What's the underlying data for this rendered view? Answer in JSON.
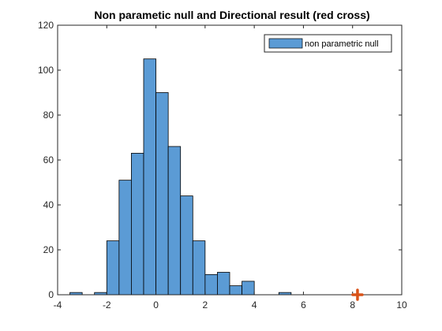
{
  "chart_data": {
    "type": "bar",
    "title": "Non parametic null and Directional result (red cross)",
    "xlabel": "",
    "ylabel": "",
    "xlim": [
      -4,
      10
    ],
    "ylim": [
      0,
      120
    ],
    "xticks": [
      "-4",
      "-2",
      "0",
      "2",
      "4",
      "6",
      "8",
      "10"
    ],
    "yticks": [
      "0",
      "20",
      "40",
      "60",
      "80",
      "100",
      "120"
    ],
    "grid": false,
    "legend": {
      "position": "top-right",
      "entries": [
        "non parametric null"
      ]
    },
    "bin_width": 0.5,
    "bins": [
      {
        "left": -3.5,
        "count": 1
      },
      {
        "left": -2.5,
        "count": 1
      },
      {
        "left": -2.0,
        "count": 24
      },
      {
        "left": -1.5,
        "count": 51
      },
      {
        "left": -1.0,
        "count": 63
      },
      {
        "left": -0.5,
        "count": 105
      },
      {
        "left": 0.0,
        "count": 90
      },
      {
        "left": 0.5,
        "count": 66
      },
      {
        "left": 1.0,
        "count": 44
      },
      {
        "left": 1.5,
        "count": 24
      },
      {
        "left": 2.0,
        "count": 9
      },
      {
        "left": 2.5,
        "count": 10
      },
      {
        "left": 3.0,
        "count": 4
      },
      {
        "left": 3.5,
        "count": 6
      },
      {
        "left": 5.0,
        "count": 1
      }
    ],
    "series": [
      {
        "name": "non parametric null",
        "kind": "histogram",
        "color": "#5b9bd5"
      }
    ],
    "marker": {
      "kind": "cross",
      "x": 8.2,
      "y": 0,
      "color": "#d95319"
    }
  }
}
